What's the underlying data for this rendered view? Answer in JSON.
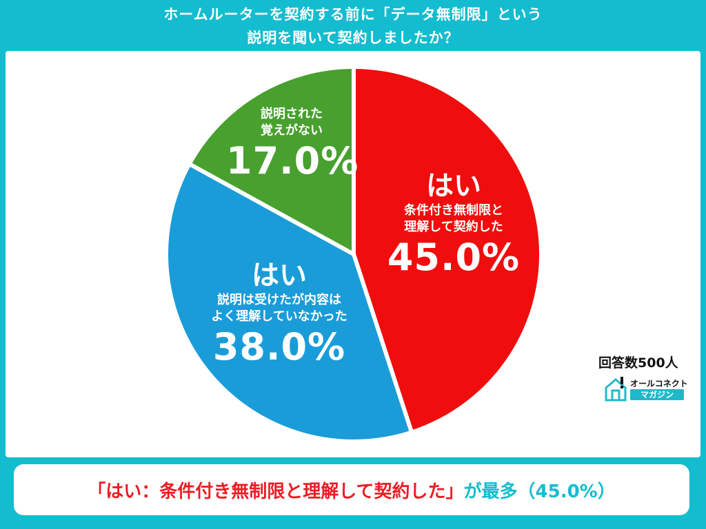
{
  "title": {
    "line1": "ホームルーターを契約する前に「データ無制限」という",
    "line2": "説明を聞いて契約しましたか？"
  },
  "colors": {
    "background": "#14bccf",
    "yes_understood": "#f00d0d",
    "yes_not_understood": "#1a9cd8",
    "no_memory": "#48a02f",
    "highlight_text": "#ec1c24"
  },
  "chart_data": {
    "type": "pie",
    "start_angle_deg": 0,
    "direction": "clockwise",
    "slices": [
      {
        "key": "yes_understood",
        "head": "はい",
        "sub1": "条件付き無制限と",
        "sub2": "理解して契約した",
        "value": 45.0,
        "label": "45.0%",
        "color": "#f00d0d"
      },
      {
        "key": "yes_not_understood",
        "head": "はい",
        "sub1": "説明は受けたが内容は",
        "sub2": "よく理解していなかった",
        "value": 38.0,
        "label": "38.0%",
        "color": "#1a9cd8"
      },
      {
        "key": "no_memory",
        "head": "",
        "sub1": "説明された",
        "sub2": "覚えがない",
        "value": 17.0,
        "label": "17.0%",
        "color": "#48a02f"
      }
    ]
  },
  "respondents": "回答数500人",
  "logo": {
    "top": "オールコネクト",
    "bottom": "マガジン",
    "icon": "house-icon"
  },
  "banner": {
    "highlight": "「はい：条件付き無制限と理解して契約した」",
    "rest": "が最多（45.0%）"
  }
}
